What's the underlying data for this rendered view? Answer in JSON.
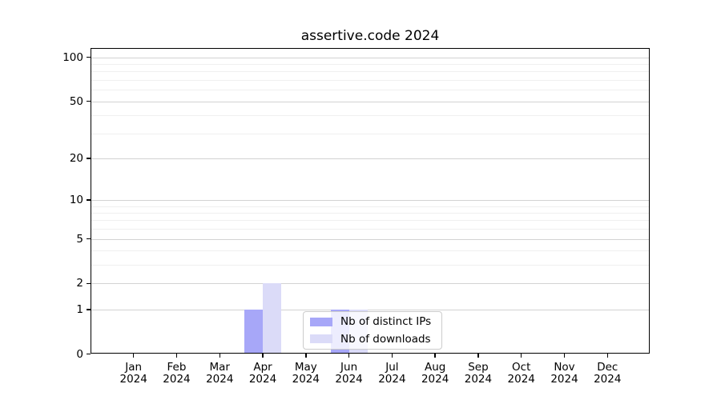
{
  "chart_data": {
    "type": "bar",
    "title": "assertive.code 2024",
    "categories": [
      "Jan 2024",
      "Feb 2024",
      "Mar 2024",
      "Apr 2024",
      "May 2024",
      "Jun 2024",
      "Jul 2024",
      "Aug 2024",
      "Sep 2024",
      "Oct 2024",
      "Nov 2024",
      "Dec 2024"
    ],
    "series": [
      {
        "name": "Nb of distinct IPs",
        "color": "#a7a7f8",
        "values": [
          0,
          0,
          0,
          1,
          0,
          1,
          0,
          0,
          0,
          0,
          0,
          0
        ]
      },
      {
        "name": "Nb of downloads",
        "color": "#dbdbf8",
        "values": [
          0,
          0,
          0,
          2,
          0,
          1,
          0,
          0,
          0,
          0,
          0,
          0
        ]
      }
    ],
    "y_axis": {
      "scale": "log1p",
      "major_ticks": [
        0,
        1,
        2,
        5,
        10,
        20,
        50,
        100
      ],
      "minor_ticks": [
        3,
        4,
        6,
        7,
        8,
        9,
        30,
        40,
        60,
        70,
        80,
        90
      ],
      "ylim": [
        0,
        113
      ]
    },
    "x_axis": {
      "ticks_per_month": true,
      "year": "2024"
    },
    "grid": "horizontal-y",
    "grid_colors": {
      "major": "#d2d2d2",
      "minor": "#f0f0f0"
    },
    "legend": {
      "location": "lower center",
      "entries": [
        "Nb of distinct IPs",
        "Nb of downloads"
      ]
    },
    "background": "#ffffff"
  }
}
